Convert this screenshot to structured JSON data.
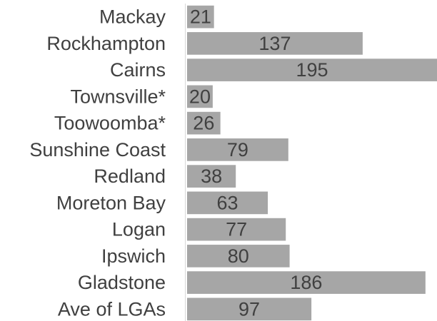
{
  "chart_data": {
    "type": "bar",
    "orientation": "horizontal",
    "categories": [
      "Mackay",
      "Rockhampton",
      "Cairns",
      "Townsville*",
      "Toowoomba*",
      "Sunshine Coast",
      "Redland",
      "Moreton Bay",
      "Logan",
      "Ipswich",
      "Gladstone",
      "Ave of LGAs"
    ],
    "values": [
      21,
      137,
      195,
      20,
      26,
      79,
      38,
      63,
      77,
      80,
      186,
      97
    ],
    "xlim": [
      0,
      195
    ],
    "data_labels": true,
    "grid": false,
    "legend": "none",
    "bar_color": "#a6a6a6",
    "text_color": "#404040",
    "axis_color": "#d9d9d9"
  }
}
